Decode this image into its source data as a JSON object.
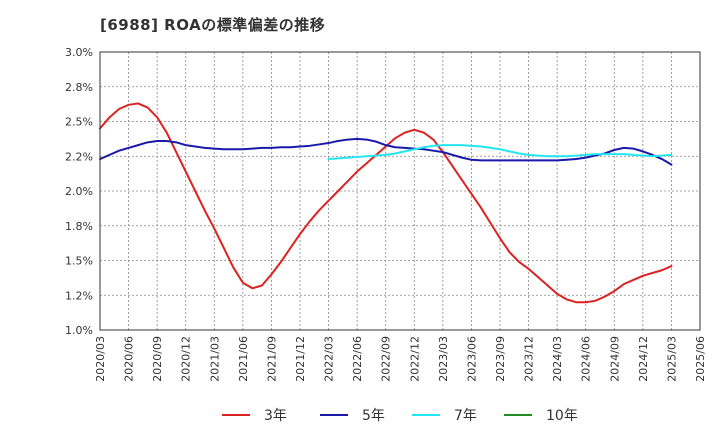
{
  "title": "[6988]  ROAの標準偏差の推移",
  "chart_data": {
    "type": "line",
    "title": "[6988]  ROAの標準偏差の推移",
    "xlabel": "",
    "ylabel": "",
    "ylim": [
      1.0,
      3.0
    ],
    "yticks": [
      "3.0%",
      "2.8%",
      "2.5%",
      "2.2%",
      "2.0%",
      "1.8%",
      "1.5%",
      "1.2%",
      "1.0%"
    ],
    "xticks": [
      "2020/03",
      "2020/06",
      "2020/09",
      "2020/12",
      "2021/03",
      "2021/06",
      "2021/09",
      "2021/12",
      "2022/03",
      "2022/06",
      "2022/09",
      "2022/12",
      "2023/03",
      "2023/06",
      "2023/09",
      "2023/12",
      "2024/03",
      "2024/06",
      "2024/09",
      "2024/12",
      "2025/03",
      "2025/06"
    ],
    "grid": true,
    "legend_position": "bottom",
    "series": [
      {
        "name": "3年",
        "color": "#dd2222",
        "points": [
          [
            "2020/03",
            2.45
          ],
          [
            "2020/04",
            2.53
          ],
          [
            "2020/05",
            2.59
          ],
          [
            "2020/06",
            2.62
          ],
          [
            "2020/07",
            2.63
          ],
          [
            "2020/08",
            2.6
          ],
          [
            "2020/09",
            2.53
          ],
          [
            "2020/10",
            2.42
          ],
          [
            "2020/11",
            2.28
          ],
          [
            "2020/12",
            2.14
          ],
          [
            "2021/01",
            2.0
          ],
          [
            "2021/02",
            1.86
          ],
          [
            "2021/03",
            1.73
          ],
          [
            "2021/04",
            1.59
          ],
          [
            "2021/05",
            1.45
          ],
          [
            "2021/06",
            1.34
          ],
          [
            "2021/07",
            1.3
          ],
          [
            "2021/08",
            1.32
          ],
          [
            "2021/09",
            1.4
          ],
          [
            "2021/10",
            1.49
          ],
          [
            "2021/11",
            1.59
          ],
          [
            "2021/12",
            1.69
          ],
          [
            "2022/01",
            1.78
          ],
          [
            "2022/02",
            1.86
          ],
          [
            "2022/03",
            1.93
          ],
          [
            "2022/04",
            2.0
          ],
          [
            "2022/05",
            2.07
          ],
          [
            "2022/06",
            2.14
          ],
          [
            "2022/07",
            2.2
          ],
          [
            "2022/08",
            2.26
          ],
          [
            "2022/09",
            2.32
          ],
          [
            "2022/10",
            2.38
          ],
          [
            "2022/11",
            2.42
          ],
          [
            "2022/12",
            2.44
          ],
          [
            "2023/01",
            2.42
          ],
          [
            "2023/02",
            2.37
          ],
          [
            "2023/03",
            2.28
          ],
          [
            "2023/04",
            2.18
          ],
          [
            "2023/05",
            2.08
          ],
          [
            "2023/06",
            1.98
          ],
          [
            "2023/07",
            1.88
          ],
          [
            "2023/08",
            1.77
          ],
          [
            "2023/09",
            1.66
          ],
          [
            "2023/10",
            1.56
          ],
          [
            "2023/11",
            1.49
          ],
          [
            "2023/12",
            1.44
          ],
          [
            "2024/01",
            1.38
          ],
          [
            "2024/02",
            1.32
          ],
          [
            "2024/03",
            1.26
          ],
          [
            "2024/04",
            1.22
          ],
          [
            "2024/05",
            1.2
          ],
          [
            "2024/06",
            1.2
          ],
          [
            "2024/07",
            1.21
          ],
          [
            "2024/08",
            1.24
          ],
          [
            "2024/09",
            1.28
          ],
          [
            "2024/10",
            1.33
          ],
          [
            "2024/11",
            1.36
          ],
          [
            "2024/12",
            1.39
          ],
          [
            "2025/01",
            1.41
          ],
          [
            "2025/02",
            1.43
          ],
          [
            "2025/03",
            1.46
          ]
        ]
      },
      {
        "name": "5年",
        "color": "#1a1aaa",
        "points": [
          [
            "2020/03",
            2.23
          ],
          [
            "2020/04",
            2.26
          ],
          [
            "2020/05",
            2.29
          ],
          [
            "2020/06",
            2.31
          ],
          [
            "2020/07",
            2.33
          ],
          [
            "2020/08",
            2.35
          ],
          [
            "2020/09",
            2.36
          ],
          [
            "2020/10",
            2.36
          ],
          [
            "2020/11",
            2.35
          ],
          [
            "2020/12",
            2.33
          ],
          [
            "2021/01",
            2.32
          ],
          [
            "2021/02",
            2.31
          ],
          [
            "2021/03",
            2.305
          ],
          [
            "2021/04",
            2.3
          ],
          [
            "2021/05",
            2.3
          ],
          [
            "2021/06",
            2.3
          ],
          [
            "2021/07",
            2.305
          ],
          [
            "2021/08",
            2.31
          ],
          [
            "2021/09",
            2.31
          ],
          [
            "2021/10",
            2.315
          ],
          [
            "2021/11",
            2.315
          ],
          [
            "2021/12",
            2.32
          ],
          [
            "2022/01",
            2.325
          ],
          [
            "2022/02",
            2.335
          ],
          [
            "2022/03",
            2.345
          ],
          [
            "2022/04",
            2.36
          ],
          [
            "2022/05",
            2.37
          ],
          [
            "2022/06",
            2.375
          ],
          [
            "2022/07",
            2.37
          ],
          [
            "2022/08",
            2.355
          ],
          [
            "2022/09",
            2.33
          ],
          [
            "2022/10",
            2.315
          ],
          [
            "2022/11",
            2.31
          ],
          [
            "2022/12",
            2.305
          ],
          [
            "2023/01",
            2.3
          ],
          [
            "2023/02",
            2.29
          ],
          [
            "2023/03",
            2.28
          ],
          [
            "2023/04",
            2.26
          ],
          [
            "2023/05",
            2.24
          ],
          [
            "2023/06",
            2.225
          ],
          [
            "2023/07",
            2.22
          ],
          [
            "2023/08",
            2.22
          ],
          [
            "2023/09",
            2.22
          ],
          [
            "2023/10",
            2.22
          ],
          [
            "2023/11",
            2.22
          ],
          [
            "2023/12",
            2.22
          ],
          [
            "2024/01",
            2.22
          ],
          [
            "2024/02",
            2.22
          ],
          [
            "2024/03",
            2.22
          ],
          [
            "2024/04",
            2.225
          ],
          [
            "2024/05",
            2.23
          ],
          [
            "2024/06",
            2.24
          ],
          [
            "2024/07",
            2.255
          ],
          [
            "2024/08",
            2.27
          ],
          [
            "2024/09",
            2.295
          ],
          [
            "2024/10",
            2.31
          ],
          [
            "2024/11",
            2.305
          ],
          [
            "2024/12",
            2.285
          ],
          [
            "2025/01",
            2.26
          ],
          [
            "2025/02",
            2.23
          ],
          [
            "2025/03",
            2.19
          ]
        ]
      },
      {
        "name": "7年",
        "color": "#22e6f0",
        "points": [
          [
            "2022/03",
            2.23
          ],
          [
            "2022/04",
            2.235
          ],
          [
            "2022/05",
            2.24
          ],
          [
            "2022/06",
            2.245
          ],
          [
            "2022/07",
            2.25
          ],
          [
            "2022/08",
            2.255
          ],
          [
            "2022/09",
            2.26
          ],
          [
            "2022/10",
            2.27
          ],
          [
            "2022/11",
            2.285
          ],
          [
            "2022/12",
            2.3
          ],
          [
            "2023/01",
            2.315
          ],
          [
            "2023/02",
            2.325
          ],
          [
            "2023/03",
            2.33
          ],
          [
            "2023/04",
            2.33
          ],
          [
            "2023/05",
            2.33
          ],
          [
            "2023/06",
            2.325
          ],
          [
            "2023/07",
            2.32
          ],
          [
            "2023/08",
            2.31
          ],
          [
            "2023/09",
            2.3
          ],
          [
            "2023/10",
            2.285
          ],
          [
            "2023/11",
            2.27
          ],
          [
            "2023/12",
            2.26
          ],
          [
            "2024/01",
            2.255
          ],
          [
            "2024/02",
            2.25
          ],
          [
            "2024/03",
            2.25
          ],
          [
            "2024/04",
            2.25
          ],
          [
            "2024/05",
            2.255
          ],
          [
            "2024/06",
            2.26
          ],
          [
            "2024/07",
            2.265
          ],
          [
            "2024/08",
            2.265
          ],
          [
            "2024/09",
            2.265
          ],
          [
            "2024/10",
            2.265
          ],
          [
            "2024/11",
            2.26
          ],
          [
            "2024/12",
            2.255
          ],
          [
            "2025/01",
            2.25
          ],
          [
            "2025/02",
            2.255
          ],
          [
            "2025/03",
            2.26
          ]
        ]
      },
      {
        "name": "10年",
        "color": "#228b22",
        "points": []
      }
    ]
  }
}
